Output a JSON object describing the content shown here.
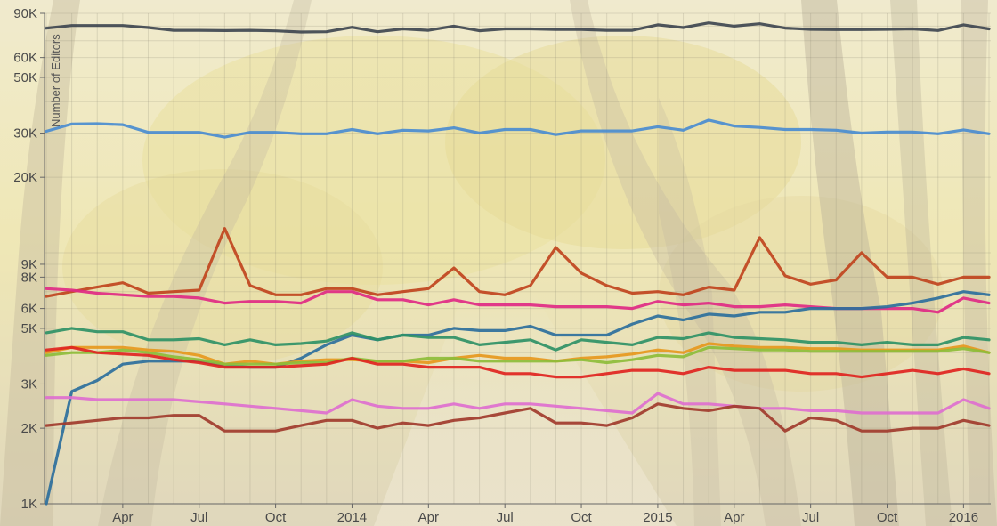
{
  "chart_data": {
    "type": "line",
    "title": "",
    "xlabel": "",
    "ylabel": "Number of Editors",
    "yscale": "log",
    "ylim": [
      1000,
      90000
    ],
    "grid": true,
    "legend": "none",
    "background": "autumn forest photograph",
    "x": [
      "2013-01",
      "2013-02",
      "2013-03",
      "2013-04",
      "2013-05",
      "2013-06",
      "2013-07",
      "2013-08",
      "2013-09",
      "2013-10",
      "2013-11",
      "2013-12",
      "2014-01",
      "2014-02",
      "2014-03",
      "2014-04",
      "2014-05",
      "2014-06",
      "2014-07",
      "2014-08",
      "2014-09",
      "2014-10",
      "2014-11",
      "2014-12",
      "2015-01",
      "2015-02",
      "2015-03",
      "2015-04",
      "2015-05",
      "2015-06",
      "2015-07",
      "2015-08",
      "2015-09",
      "2015-10",
      "2015-11",
      "2015-12",
      "2016-01",
      "2016-02"
    ],
    "x_ticks": [
      {
        "date": "2013-04",
        "label": "Apr"
      },
      {
        "date": "2013-07",
        "label": "Jul"
      },
      {
        "date": "2013-10",
        "label": "Oct"
      },
      {
        "date": "2014-01",
        "label": "2014"
      },
      {
        "date": "2014-04",
        "label": "Apr"
      },
      {
        "date": "2014-07",
        "label": "Jul"
      },
      {
        "date": "2014-10",
        "label": "Oct"
      },
      {
        "date": "2015-01",
        "label": "2015"
      },
      {
        "date": "2015-04",
        "label": "Apr"
      },
      {
        "date": "2015-07",
        "label": "Jul"
      },
      {
        "date": "2015-10",
        "label": "Oct"
      },
      {
        "date": "2016-01",
        "label": "2016"
      }
    ],
    "y_ticks": [
      {
        "value": 1000,
        "label": "1K"
      },
      {
        "value": 2000,
        "label": "2K"
      },
      {
        "value": 3000,
        "label": "3K"
      },
      {
        "value": 5000,
        "label": "5K"
      },
      {
        "value": 6000,
        "label": "6K"
      },
      {
        "value": 8000,
        "label": "8K"
      },
      {
        "value": 9000,
        "label": "9K"
      },
      {
        "value": 20000,
        "label": "20K"
      },
      {
        "value": 30000,
        "label": "30K"
      },
      {
        "value": 50000,
        "label": "50K"
      },
      {
        "value": 60000,
        "label": "60K"
      },
      {
        "value": 90000,
        "label": "90K"
      }
    ],
    "series": [
      {
        "color": "#3f4750",
        "values": [
          78500,
          80500,
          80500,
          80500,
          79000,
          77000,
          77000,
          76800,
          77000,
          76600,
          75800,
          76000,
          79200,
          76000,
          78000,
          77000,
          80000,
          76700,
          78000,
          78000,
          77600,
          77600,
          77000,
          77000,
          81000,
          79000,
          82500,
          80000,
          81800,
          78600,
          77700,
          77500,
          77500,
          77700,
          78000,
          76900,
          81000,
          78000
        ]
      },
      {
        "color": "#4a8cd0",
        "values": [
          30500,
          32600,
          32700,
          32400,
          30200,
          30200,
          30200,
          28900,
          30200,
          30200,
          29800,
          29800,
          31000,
          29800,
          30800,
          30600,
          31500,
          30000,
          31000,
          31000,
          29600,
          30600,
          30600,
          30600,
          31800,
          30800,
          33800,
          32000,
          31600,
          31000,
          31000,
          30800,
          30000,
          30300,
          30300,
          29800,
          30900,
          29800
        ]
      },
      {
        "color": "#c0441e",
        "values": [
          6700,
          7000,
          7300,
          7600,
          6900,
          7000,
          7100,
          12500,
          7400,
          6800,
          6800,
          7200,
          7200,
          6800,
          7000,
          7200,
          8700,
          7000,
          6800,
          7400,
          10500,
          8300,
          7400,
          6900,
          7000,
          6800,
          7300,
          7100,
          11500,
          8100,
          7500,
          7800,
          10000,
          8000,
          8000,
          7500,
          8000,
          8000
        ]
      },
      {
        "color": "#df2a84",
        "values": [
          7200,
          7100,
          6900,
          6800,
          6700,
          6700,
          6600,
          6300,
          6400,
          6400,
          6300,
          7000,
          7000,
          6500,
          6500,
          6200,
          6500,
          6200,
          6200,
          6200,
          6100,
          6100,
          6100,
          6000,
          6400,
          6200,
          6300,
          6100,
          6100,
          6200,
          6100,
          6000,
          6000,
          6000,
          6000,
          5800,
          6600,
          6300
        ]
      },
      {
        "color": "#2c6f9c",
        "values": [
          1000,
          2800,
          3100,
          3600,
          3700,
          3700,
          3700,
          3550,
          3500,
          3500,
          3800,
          4300,
          4700,
          4500,
          4700,
          4700,
          5000,
          4900,
          4900,
          5100,
          4700,
          4700,
          4700,
          5200,
          5600,
          5400,
          5700,
          5600,
          5800,
          5800,
          6000,
          6000,
          6000,
          6100,
          6300,
          6600,
          7000,
          6800
        ]
      },
      {
        "color": "#2f9166",
        "values": [
          4800,
          5000,
          4850,
          4850,
          4500,
          4500,
          4550,
          4300,
          4500,
          4300,
          4350,
          4450,
          4800,
          4500,
          4700,
          4600,
          4600,
          4300,
          4400,
          4500,
          4100,
          4500,
          4400,
          4300,
          4600,
          4550,
          4800,
          4600,
          4550,
          4500,
          4400,
          4400,
          4300,
          4400,
          4300,
          4300,
          4600,
          4500
        ]
      },
      {
        "color": "#e6981d",
        "values": [
          4000,
          4200,
          4200,
          4200,
          4100,
          4050,
          3900,
          3600,
          3700,
          3600,
          3700,
          3750,
          3750,
          3700,
          3700,
          3650,
          3800,
          3900,
          3800,
          3800,
          3700,
          3800,
          3850,
          3950,
          4100,
          4000,
          4350,
          4250,
          4200,
          4200,
          4150,
          4150,
          4100,
          4100,
          4100,
          4100,
          4250,
          4000
        ]
      },
      {
        "color": "#8dbd3a",
        "values": [
          3900,
          4000,
          4000,
          4100,
          4000,
          3850,
          3750,
          3600,
          3600,
          3600,
          3650,
          3650,
          3800,
          3700,
          3700,
          3800,
          3800,
          3700,
          3700,
          3700,
          3700,
          3750,
          3650,
          3750,
          3900,
          3850,
          4200,
          4150,
          4100,
          4100,
          4050,
          4050,
          4050,
          4050,
          4050,
          4050,
          4150,
          4000
        ]
      },
      {
        "color": "#e02420",
        "values": [
          4100,
          4200,
          4000,
          3950,
          3900,
          3750,
          3650,
          3500,
          3500,
          3500,
          3550,
          3600,
          3800,
          3600,
          3600,
          3500,
          3500,
          3500,
          3300,
          3300,
          3200,
          3200,
          3300,
          3400,
          3400,
          3300,
          3500,
          3400,
          3400,
          3400,
          3300,
          3300,
          3200,
          3300,
          3400,
          3300,
          3450,
          3300
        ]
      },
      {
        "color": "#de6fcf",
        "values": [
          2650,
          2650,
          2600,
          2600,
          2600,
          2600,
          2550,
          2500,
          2450,
          2400,
          2350,
          2300,
          2600,
          2450,
          2400,
          2400,
          2500,
          2400,
          2500,
          2500,
          2450,
          2400,
          2350,
          2300,
          2750,
          2500,
          2500,
          2450,
          2400,
          2400,
          2350,
          2350,
          2300,
          2300,
          2300,
          2300,
          2600,
          2400
        ]
      },
      {
        "color": "#a13b2c",
        "values": [
          2050,
          2100,
          2150,
          2200,
          2200,
          2250,
          2250,
          1950,
          1950,
          1950,
          2050,
          2150,
          2150,
          2000,
          2100,
          2050,
          2150,
          2200,
          2300,
          2400,
          2100,
          2100,
          2050,
          2200,
          2500,
          2400,
          2350,
          2450,
          2400,
          1950,
          2200,
          2150,
          1950,
          1950,
          2000,
          2000,
          2150,
          2050
        ]
      }
    ]
  }
}
